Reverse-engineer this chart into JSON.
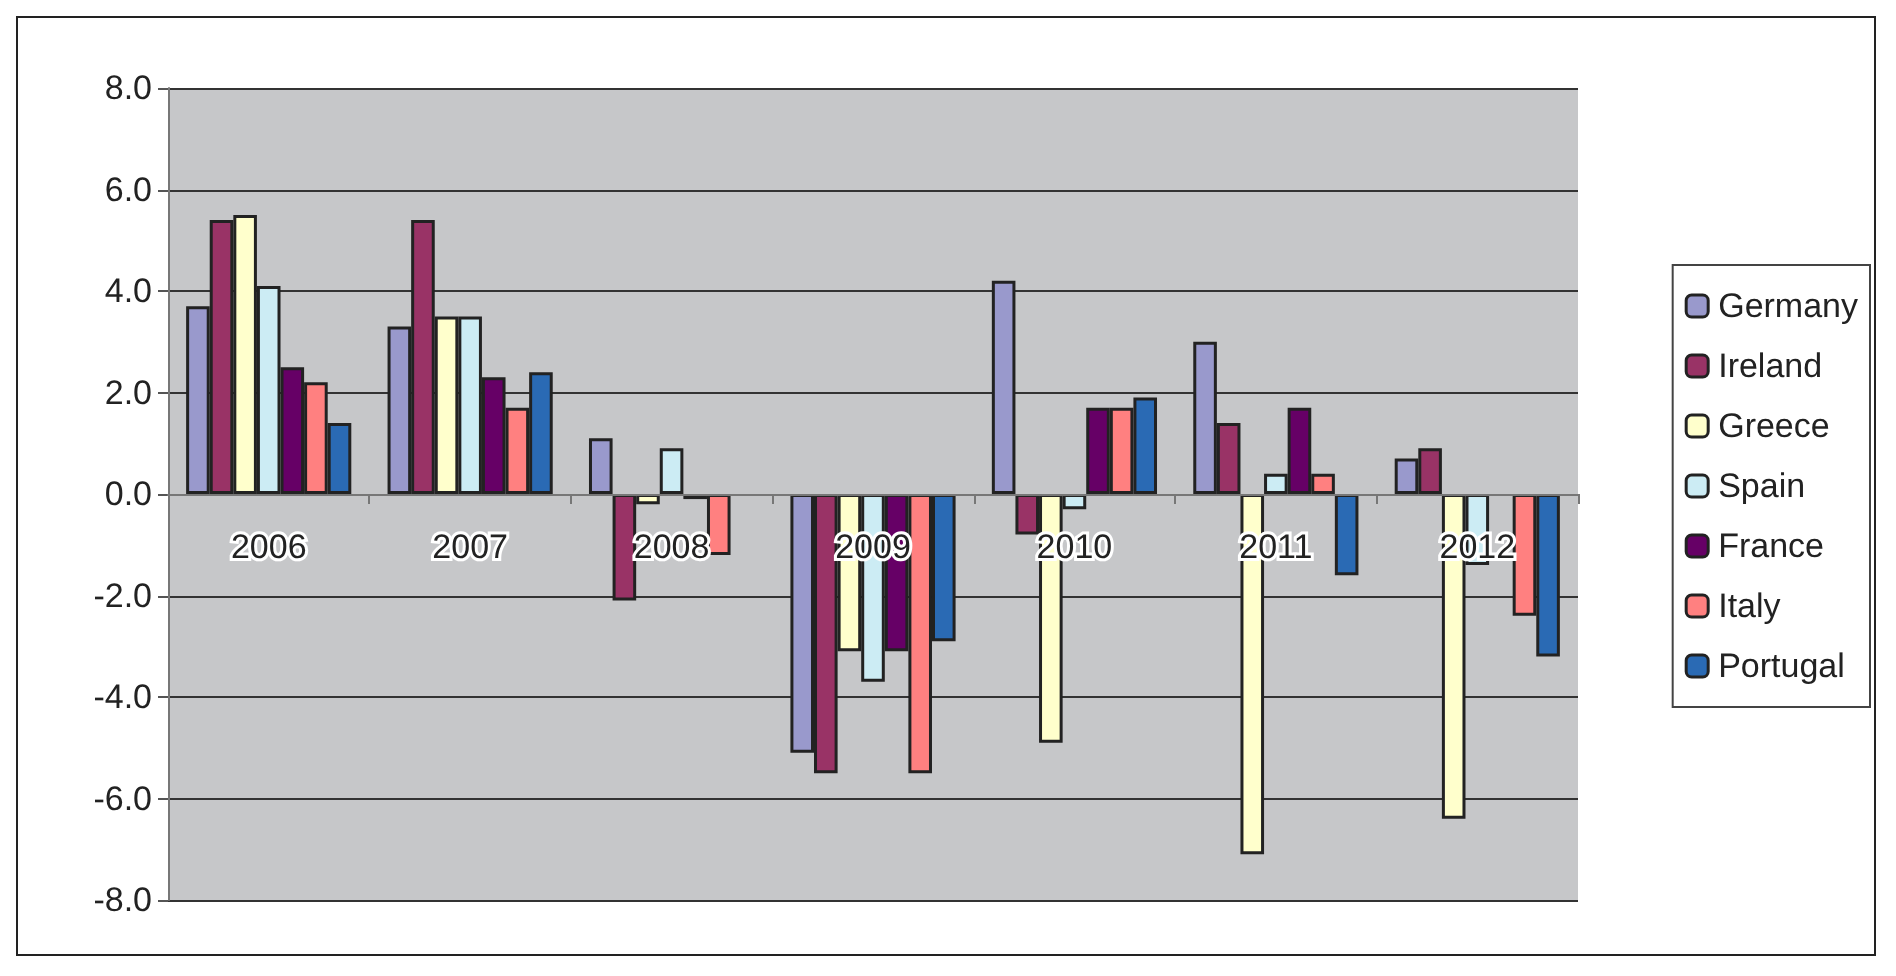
{
  "chart_data": {
    "type": "bar",
    "categories": [
      "2006",
      "2007",
      "2008",
      "2009",
      "2010",
      "2011",
      "2012"
    ],
    "series": [
      {
        "name": "Germany",
        "color": "#9999cc",
        "values": [
          3.7,
          3.3,
          1.1,
          -5.1,
          4.2,
          3.0,
          0.7
        ]
      },
      {
        "name": "Ireland",
        "color": "#993366",
        "values": [
          5.4,
          5.4,
          -2.1,
          -5.5,
          -0.8,
          1.4,
          0.9
        ]
      },
      {
        "name": "Greece",
        "color": "#ffffcc",
        "values": [
          5.5,
          3.5,
          -0.2,
          -3.1,
          -4.9,
          -7.1,
          -6.4
        ]
      },
      {
        "name": "Spain",
        "color": "#ccecf4",
        "values": [
          4.1,
          3.5,
          0.9,
          -3.7,
          -0.3,
          0.4,
          -1.4
        ]
      },
      {
        "name": "France",
        "color": "#660066",
        "values": [
          2.5,
          2.3,
          -0.1,
          -3.1,
          1.7,
          1.7,
          null
        ]
      },
      {
        "name": "Italy",
        "color": "#ff8080",
        "values": [
          2.2,
          1.7,
          -1.2,
          -5.5,
          1.7,
          0.4,
          -2.4
        ]
      },
      {
        "name": "Portugal",
        "color": "#2a6ab4",
        "values": [
          1.4,
          2.4,
          null,
          -2.9,
          1.9,
          -1.6,
          -3.2
        ]
      }
    ],
    "ylim": [
      -8,
      8
    ],
    "yticks": [
      {
        "value": -8,
        "label": "-8.0"
      },
      {
        "value": -6,
        "label": "-6.0"
      },
      {
        "value": -4,
        "label": "-4.0"
      },
      {
        "value": -2,
        "label": "-2.0"
      },
      {
        "value": 0,
        "label": "0.0"
      },
      {
        "value": 2,
        "label": "2.0"
      },
      {
        "value": 4,
        "label": "4.0"
      },
      {
        "value": 6,
        "label": "6.0"
      },
      {
        "value": 8,
        "label": "8.0"
      }
    ],
    "grid": "y",
    "legend": "right"
  }
}
